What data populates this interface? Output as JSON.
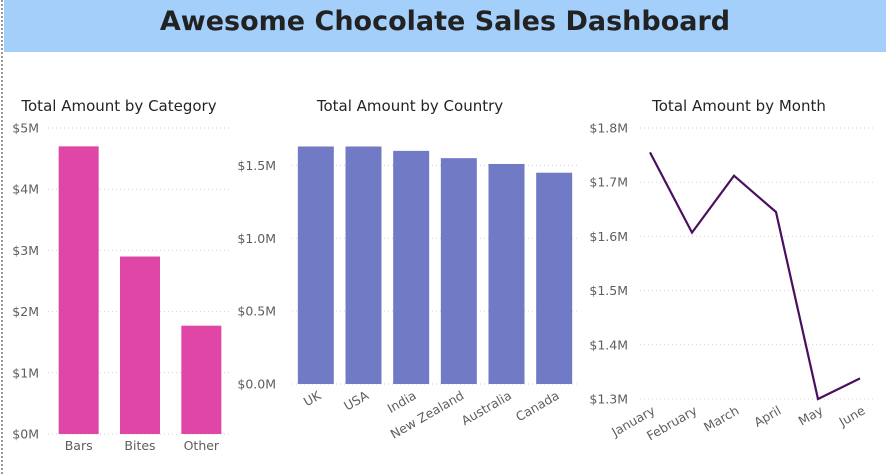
{
  "header": {
    "title": "Awesome Chocolate Sales Dashboard"
  },
  "colors": {
    "header_bg": "#a4cffb",
    "category_bar": "#df46a6",
    "country_bar": "#717bc5",
    "month_line": "#4a0f5e"
  },
  "chart_data": [
    {
      "type": "bar",
      "title": "Total Amount by Category",
      "categories": [
        "Bars",
        "Bites",
        "Other"
      ],
      "values": [
        4.7,
        2.9,
        1.77
      ],
      "unit": "M",
      "ylim": [
        0,
        5
      ],
      "yticks": [
        "$0M",
        "$1M",
        "$2M",
        "$3M",
        "$4M",
        "$5M"
      ],
      "grid": true
    },
    {
      "type": "bar",
      "title": "Total Amount by Country",
      "categories": [
        "UK",
        "USA",
        "India",
        "New Zealand",
        "Australia",
        "Canada"
      ],
      "values": [
        1.63,
        1.63,
        1.6,
        1.55,
        1.51,
        1.45
      ],
      "unit": "M",
      "ylim": [
        0,
        1.75
      ],
      "yticks": [
        "$0.0M",
        "$0.5M",
        "$1.0M",
        "$1.5M"
      ],
      "grid": true
    },
    {
      "type": "line",
      "title": "Total Amount by Month",
      "categories": [
        "January",
        "February",
        "March",
        "April",
        "May",
        "June"
      ],
      "values": [
        1.755,
        1.607,
        1.712,
        1.645,
        1.3,
        1.338
      ],
      "unit": "M",
      "ylim": [
        1.3,
        1.8
      ],
      "yticks": [
        "$1.3M",
        "$1.4M",
        "$1.5M",
        "$1.6M",
        "$1.7M",
        "$1.8M"
      ],
      "grid": true
    }
  ]
}
